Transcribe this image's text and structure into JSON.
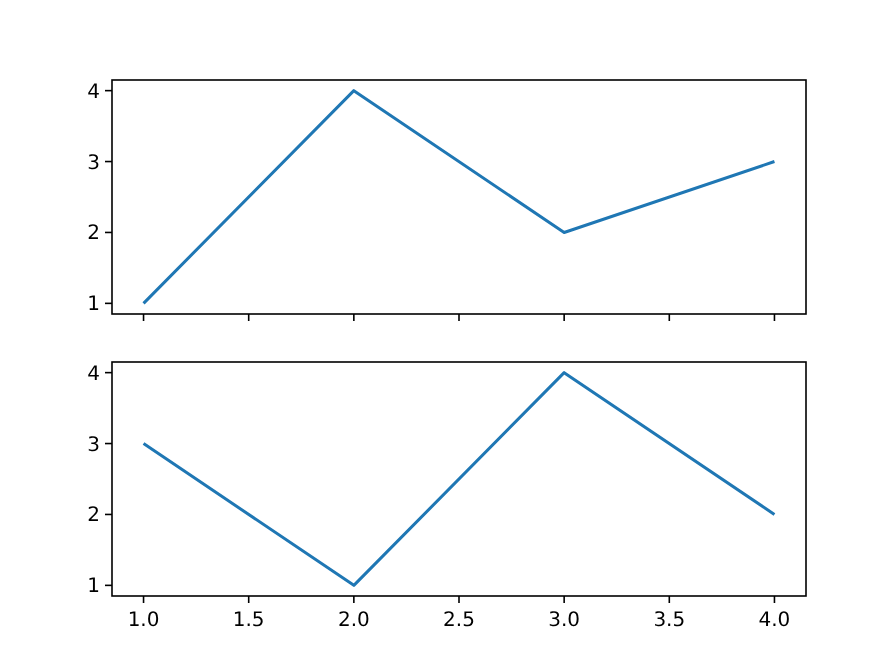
{
  "chart_data": [
    {
      "type": "line",
      "x": [
        1,
        2,
        3,
        4
      ],
      "values": [
        1,
        4,
        2,
        3
      ],
      "color": "#1f77b4",
      "xlim": [
        0.85,
        4.15
      ],
      "xticks": [
        {
          "value": 1,
          "label": null
        },
        {
          "value": 1.5,
          "label": null
        },
        {
          "value": 2,
          "label": null
        },
        {
          "value": 2.5,
          "label": null
        },
        {
          "value": 3,
          "label": null
        },
        {
          "value": 3.5,
          "label": null
        },
        {
          "value": 4,
          "label": null
        }
      ],
      "ylim": [
        0.85,
        4.15
      ],
      "yticks": [
        1,
        2,
        3,
        4
      ],
      "tick_labels": "y",
      "grid": false,
      "marker": "none",
      "line_style": "solid"
    },
    {
      "type": "line",
      "x": [
        1,
        2,
        3,
        4
      ],
      "values": [
        3,
        1,
        4,
        2
      ],
      "color": "#1f77b4",
      "xlim": [
        0.85,
        4.15
      ],
      "xticks": [
        {
          "value": 1,
          "label": "1.0"
        },
        {
          "value": 1.5,
          "label": "1.5"
        },
        {
          "value": 2,
          "label": "2.0"
        },
        {
          "value": 2.5,
          "label": "2.5"
        },
        {
          "value": 3,
          "label": "3.0"
        },
        {
          "value": 3.5,
          "label": "3.5"
        },
        {
          "value": 4,
          "label": "4.0"
        }
      ],
      "ylim": [
        0.85,
        4.15
      ],
      "yticks": [
        1,
        2,
        3,
        4
      ],
      "grid": false,
      "marker": "none",
      "line_style": "solid"
    }
  ]
}
